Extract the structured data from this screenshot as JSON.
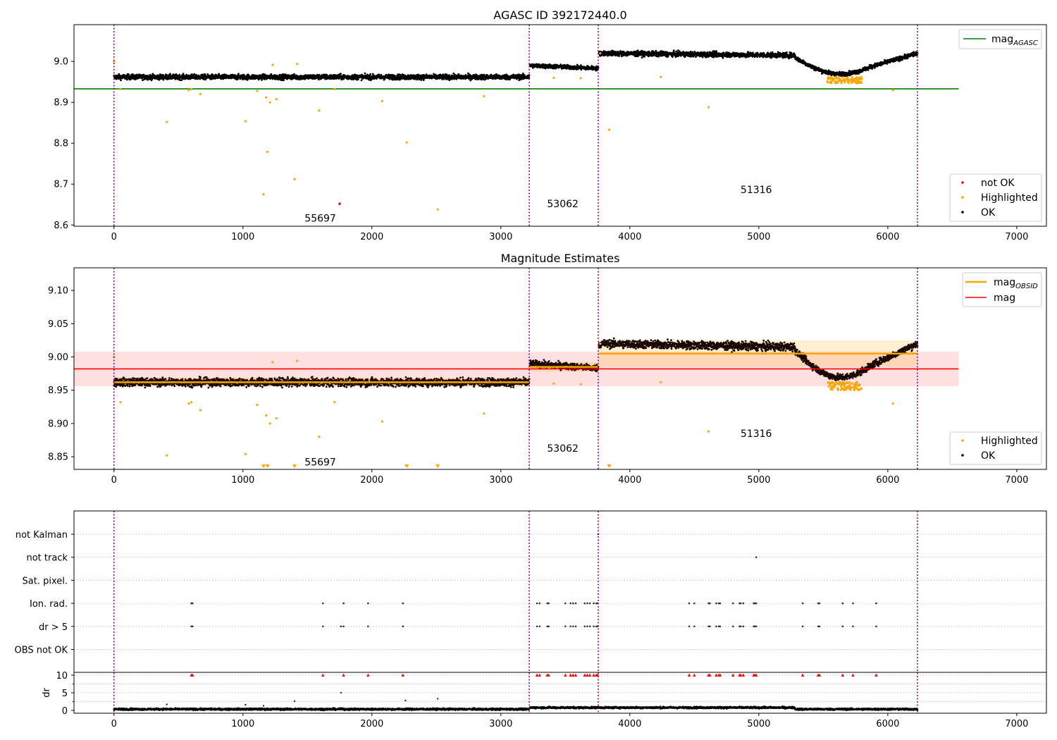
{
  "chart_data": [
    {
      "type": "scatter",
      "title": "AGASC ID 392172440.0",
      "xlim": [
        -310,
        7230
      ],
      "ylim": [
        8.597,
        9.09
      ],
      "xticks": [
        0,
        1000,
        2000,
        3000,
        4000,
        5000,
        6000,
        7000
      ],
      "yticks": [
        8.6,
        8.7,
        8.8,
        8.9,
        9.0
      ],
      "ytick_labels": [
        "8.6",
        "8.7",
        "8.8",
        "8.9",
        "9.0"
      ],
      "obs_boundaries": [
        0,
        3220,
        3755,
        6230
      ],
      "obs_labels": [
        {
          "text": "55697",
          "x": 1600,
          "y": 8.617
        },
        {
          "text": "53062",
          "x": 3480,
          "y": 8.652
        },
        {
          "text": "51316",
          "x": 4980,
          "y": 8.687
        }
      ],
      "reference_line": {
        "name": "mag",
        "sub": "AGASC",
        "y": 8.933,
        "x": [
          -310,
          6550
        ],
        "color": "#008000"
      },
      "ok_segments": [
        {
          "x": [
            0,
            3220
          ],
          "y_start": 8.962,
          "y_end": 8.962,
          "spread": 0.011,
          "wave": 0
        },
        {
          "x": [
            3225,
            3755
          ],
          "y_start": 8.99,
          "y_end": 8.983,
          "spread": 0.009,
          "wave": 0
        },
        {
          "x": [
            3760,
            5280
          ],
          "y_start": 9.02,
          "y_end": 9.015,
          "spread": 0.011,
          "wave": 0
        },
        {
          "x": [
            5280,
            5900
          ],
          "y_start": 9.01,
          "y_end": 8.99,
          "spread": 0.009,
          "wave": -0.03
        },
        {
          "x": [
            5900,
            6230
          ],
          "y_start": 8.99,
          "y_end": 9.02,
          "spread": 0.009,
          "wave": 0
        }
      ],
      "highlighted_points": [
        [
          0,
          9.0
        ],
        [
          50,
          8.932
        ],
        [
          410,
          8.852
        ],
        [
          580,
          8.93
        ],
        [
          600,
          8.932
        ],
        [
          670,
          8.92
        ],
        [
          1020,
          8.854
        ],
        [
          1110,
          8.928
        ],
        [
          1160,
          8.675
        ],
        [
          1180,
          8.912
        ],
        [
          1190,
          8.779
        ],
        [
          1210,
          8.9
        ],
        [
          1230,
          8.992
        ],
        [
          1260,
          8.908
        ],
        [
          1400,
          8.712
        ],
        [
          1420,
          8.994
        ],
        [
          1590,
          8.88
        ],
        [
          1710,
          8.932
        ],
        [
          2080,
          8.903
        ],
        [
          2270,
          8.802
        ],
        [
          2510,
          8.638
        ],
        [
          2870,
          8.915
        ],
        [
          3410,
          8.96
        ],
        [
          3620,
          8.959
        ],
        [
          3770,
          9.02
        ],
        [
          3840,
          8.833
        ],
        [
          4240,
          8.962
        ],
        [
          4610,
          8.888
        ],
        [
          6040,
          8.93
        ]
      ],
      "highlighted_bands": [
        {
          "x": [
            5530,
            5800
          ],
          "y": [
            8.947,
            8.962
          ]
        }
      ],
      "not_ok_points": [
        [
          1750,
          8.652
        ]
      ],
      "legend_top": [
        {
          "label": "mag",
          "sub": "AGASC",
          "color": "#008000"
        }
      ],
      "legend_bottom": [
        {
          "label": "not OK",
          "color": "#ff0000"
        },
        {
          "label": "Highlighted",
          "color": "#ffa500"
        },
        {
          "label": "OK",
          "color": "#000000"
        }
      ]
    },
    {
      "type": "scatter",
      "title": "Magnitude Estimates",
      "xlim": [
        -310,
        7230
      ],
      "ylim": [
        8.831,
        9.134
      ],
      "xticks": [
        0,
        1000,
        2000,
        3000,
        4000,
        5000,
        6000,
        7000
      ],
      "yticks": [
        8.85,
        8.9,
        8.95,
        9.0,
        9.05,
        9.1
      ],
      "ytick_labels": [
        "8.85",
        "8.90",
        "8.95",
        "9.00",
        "9.05",
        "9.10"
      ],
      "obs_boundaries": [
        0,
        3220,
        3755,
        6230
      ],
      "obs_labels": [
        {
          "text": "55697",
          "x": 1600,
          "y": 8.842
        },
        {
          "text": "53062",
          "x": 3480,
          "y": 8.863
        },
        {
          "text": "51316",
          "x": 4980,
          "y": 8.885
        }
      ],
      "mag_line": {
        "name": "mag",
        "y": 8.982,
        "band": [
          8.956,
          9.008
        ],
        "x": [
          -310,
          6550
        ],
        "color": "#ff0000"
      },
      "obs_mag_segments": [
        {
          "x": [
            0,
            3220
          ],
          "y": 8.962,
          "band": [
            8.955,
            8.969
          ]
        },
        {
          "x": [
            3225,
            3755
          ],
          "y": 8.985,
          "band": [
            8.978,
            8.992
          ]
        },
        {
          "x": [
            3760,
            6230
          ],
          "y": 9.005,
          "band": [
            8.985,
            9.025
          ]
        }
      ],
      "ok_segments": [
        {
          "x": [
            0,
            3220
          ],
          "y_start": 8.962,
          "y_end": 8.962,
          "spread": 0.011,
          "wave": 0
        },
        {
          "x": [
            3225,
            3755
          ],
          "y_start": 8.99,
          "y_end": 8.983,
          "spread": 0.009,
          "wave": 0
        },
        {
          "x": [
            3760,
            5280
          ],
          "y_start": 9.02,
          "y_end": 9.015,
          "spread": 0.011,
          "wave": 0
        },
        {
          "x": [
            5280,
            5900
          ],
          "y_start": 9.01,
          "y_end": 8.99,
          "spread": 0.009,
          "wave": -0.03
        },
        {
          "x": [
            5900,
            6230
          ],
          "y_start": 8.99,
          "y_end": 9.02,
          "spread": 0.009,
          "wave": 0
        }
      ],
      "highlighted_points": [
        [
          0,
          9.0
        ],
        [
          50,
          8.932
        ],
        [
          410,
          8.852
        ],
        [
          580,
          8.93
        ],
        [
          600,
          8.932
        ],
        [
          670,
          8.92
        ],
        [
          1020,
          8.854
        ],
        [
          1110,
          8.928
        ],
        [
          1180,
          8.912
        ],
        [
          1210,
          8.9
        ],
        [
          1230,
          8.992
        ],
        [
          1260,
          8.908
        ],
        [
          1420,
          8.994
        ],
        [
          1590,
          8.88
        ],
        [
          1710,
          8.932
        ],
        [
          2080,
          8.903
        ],
        [
          2870,
          8.915
        ],
        [
          3410,
          8.96
        ],
        [
          3620,
          8.959
        ],
        [
          3770,
          9.02
        ],
        [
          4240,
          8.962
        ],
        [
          4610,
          8.888
        ],
        [
          6040,
          8.93
        ]
      ],
      "highlighted_bands": [
        {
          "x": [
            5530,
            5800
          ],
          "y": [
            8.95,
            8.962
          ]
        }
      ],
      "clipped_markers": [
        1160,
        1190,
        1400,
        2270,
        2510,
        3840
      ],
      "legend_top": [
        {
          "label": "mag",
          "sub": "OBSID",
          "color": "#ffa500"
        },
        {
          "label": "mag",
          "sub": "",
          "color": "#ff0000"
        }
      ],
      "legend_bottom": [
        {
          "label": "Highlighted",
          "color": "#ffa500"
        },
        {
          "label": "OK",
          "color": "#000000"
        }
      ]
    },
    {
      "type": "scatter",
      "title": "",
      "xlim": [
        -310,
        7230
      ],
      "xticks": [
        0,
        1000,
        2000,
        3000,
        4000,
        5000,
        6000,
        7000
      ],
      "obs_boundaries": [
        0,
        3220,
        3755,
        6230
      ],
      "flag_rows": [
        "not Kalman",
        "not track",
        "Sat. pixel.",
        "Ion. rad.",
        "dr > 5",
        "OBS not OK"
      ],
      "flag_points": {
        "not Kalman": [
          3755
        ],
        "not track": [
          4980
        ],
        "Ion. rad.": [
          600,
          610,
          1620,
          1780,
          1970,
          2240,
          3280,
          3300,
          3360,
          3370,
          3500,
          3540,
          3560,
          3580,
          3650,
          3670,
          3690,
          3720,
          3740,
          3750,
          4460,
          4500,
          4610,
          4620,
          4670,
          4690,
          4700,
          4800,
          4850,
          4860,
          4880,
          4960,
          4970,
          4980,
          5340,
          5460,
          5470,
          5650,
          5730,
          5910
        ],
        "dr > 5": [
          600,
          610,
          1620,
          1760,
          1780,
          1970,
          2240,
          3280,
          3300,
          3360,
          3370,
          3500,
          3540,
          3560,
          3580,
          3650,
          3670,
          3690,
          3720,
          3740,
          3750,
          4460,
          4500,
          4610,
          4620,
          4670,
          4690,
          4700,
          4800,
          4850,
          4860,
          4880,
          4960,
          4970,
          4980,
          5340,
          5460,
          5470,
          5650,
          5730,
          5910
        ]
      },
      "dr_panel": {
        "ylabel": "dr",
        "ylim": [
          -0.8,
          10.8
        ],
        "yticks": [
          0,
          5,
          10
        ],
        "clipped_red": [
          600,
          610,
          1620,
          1780,
          1970,
          2240,
          3280,
          3300,
          3360,
          3370,
          3500,
          3540,
          3560,
          3580,
          3650,
          3670,
          3690,
          3720,
          3740,
          3750,
          4460,
          4500,
          4610,
          4620,
          4670,
          4690,
          4700,
          4800,
          4850,
          4860,
          4880,
          4960,
          4970,
          4980,
          5340,
          5460,
          5470,
          5650,
          5730,
          5910
        ],
        "outliers": [
          [
            410,
            1.7
          ],
          [
            1020,
            1.6
          ],
          [
            1160,
            1.3
          ],
          [
            1400,
            2.6
          ],
          [
            1760,
            5.0
          ],
          [
            2260,
            2.8
          ],
          [
            2510,
            3.3
          ]
        ]
      }
    }
  ]
}
